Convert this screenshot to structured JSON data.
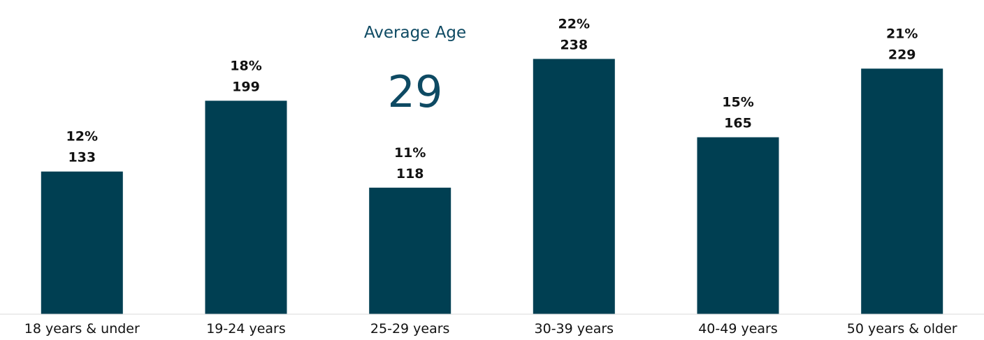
{
  "kpi": {
    "title": "Average Age",
    "value": "29"
  },
  "colors": {
    "bar": "#003f52",
    "kpi_text": "#0e4a63",
    "label_text": "#111111",
    "axis": "#d9d9d9"
  },
  "chart_data": {
    "type": "bar",
    "title": "",
    "xlabel": "",
    "ylabel": "",
    "categories": [
      "18 years & under",
      "19-24 years",
      "25-29 years",
      "30-39 years",
      "40-49 years",
      "50 years & older"
    ],
    "values": [
      133,
      199,
      118,
      238,
      165,
      229
    ],
    "percent_labels": [
      "12%",
      "18%",
      "11%",
      "22%",
      "15%",
      "21%"
    ],
    "count_labels": [
      "133",
      "199",
      "118",
      "238",
      "165",
      "229"
    ],
    "ylim": [
      0,
      255
    ],
    "grid": false,
    "legend": "none"
  }
}
